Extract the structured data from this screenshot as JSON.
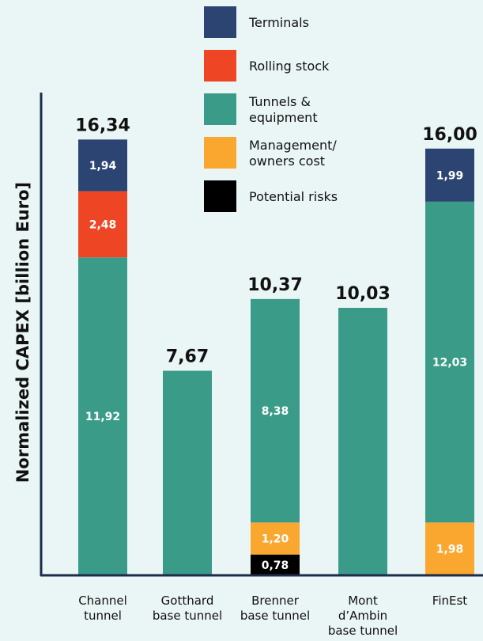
{
  "chart_data": {
    "type": "bar",
    "stacked": true,
    "ylabel": "Normalized CAPEX [billion Euro]",
    "ylim": [
      0,
      18.1
    ],
    "grid": false,
    "legend_position": "top-right",
    "categories": [
      [
        "Channel",
        "tunnel"
      ],
      [
        "Gotthard",
        "base tunnel"
      ],
      [
        "Brenner",
        "base tunnel"
      ],
      [
        "Mont",
        "d’Ambin",
        "base tunnel"
      ],
      [
        "FinEst"
      ]
    ],
    "totals": [
      "16,34",
      "7,67",
      "10,37",
      "10,03",
      "16,00"
    ],
    "total_values": [
      16.34,
      7.67,
      10.37,
      10.03,
      16.0
    ],
    "series": [
      {
        "name": "Potential risks",
        "color": "#000000",
        "values": [
          0,
          0,
          0.78,
          0,
          0
        ],
        "labels": [
          "",
          "",
          "0,78",
          "",
          ""
        ]
      },
      {
        "name": "Management/\nowners cost",
        "color": "#f9a72f",
        "values": [
          0,
          0,
          1.2,
          0,
          1.98
        ],
        "labels": [
          "",
          "",
          "1,20",
          "",
          "1,98"
        ]
      },
      {
        "name": "Tunnels &\nequipment",
        "color": "#3a9c88",
        "values": [
          11.92,
          7.67,
          8.38,
          10.03,
          12.03
        ],
        "labels": [
          "11,92",
          "",
          "8,38",
          "",
          "12,03"
        ]
      },
      {
        "name": "Rolling stock",
        "color": "#ee4625",
        "values": [
          2.48,
          0,
          0,
          0,
          0
        ],
        "labels": [
          "2,48",
          "",
          "",
          "",
          ""
        ]
      },
      {
        "name": "Terminals",
        "color": "#2b4471",
        "values": [
          1.94,
          0,
          0,
          0,
          1.99
        ],
        "labels": [
          "1,94",
          "",
          "",
          "",
          "1,99"
        ]
      }
    ],
    "legend_order": [
      "Terminals",
      "Rolling stock",
      "Tunnels &\nequipment",
      "Management/\nowners cost",
      "Potential risks"
    ]
  }
}
